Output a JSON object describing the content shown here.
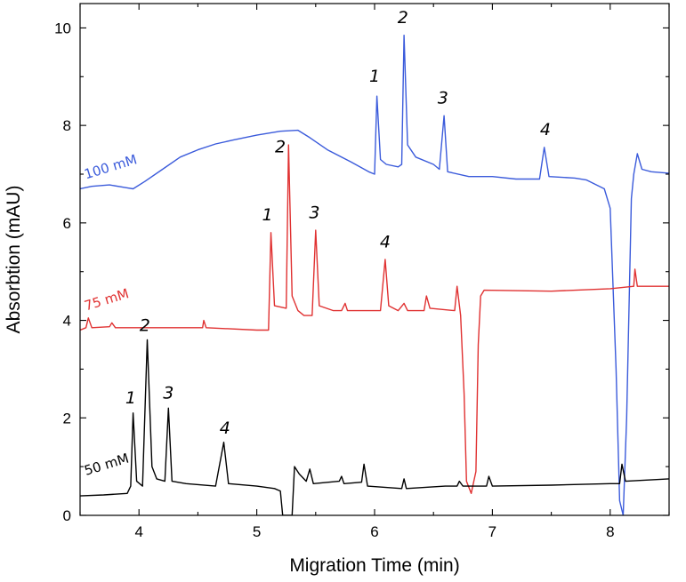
{
  "chart_data": {
    "type": "line",
    "xlabel": "Migration Time (min)",
    "ylabel": "Absorbtion (mAU)",
    "xlim": [
      3.5,
      8.5
    ],
    "ylim": [
      0,
      10.5
    ],
    "xticks": [
      4,
      5,
      6,
      7,
      8
    ],
    "yticks": [
      0,
      2,
      4,
      6,
      8,
      10
    ],
    "grid": false,
    "series": [
      {
        "name": "100 mM",
        "color": "#3b5bdb",
        "label_at": [
          3.55,
          6.9
        ],
        "points": [
          [
            3.5,
            6.7
          ],
          [
            3.6,
            6.75
          ],
          [
            3.75,
            6.78
          ],
          [
            3.9,
            6.72
          ],
          [
            3.95,
            6.7
          ],
          [
            4.05,
            6.85
          ],
          [
            4.2,
            7.1
          ],
          [
            4.35,
            7.35
          ],
          [
            4.5,
            7.5
          ],
          [
            4.65,
            7.62
          ],
          [
            4.8,
            7.7
          ],
          [
            5.0,
            7.8
          ],
          [
            5.2,
            7.88
          ],
          [
            5.35,
            7.9
          ],
          [
            5.45,
            7.75
          ],
          [
            5.6,
            7.5
          ],
          [
            5.8,
            7.25
          ],
          [
            5.95,
            7.05
          ],
          [
            6.0,
            7.0
          ],
          [
            6.02,
            8.6
          ],
          [
            6.05,
            7.3
          ],
          [
            6.1,
            7.2
          ],
          [
            6.2,
            7.15
          ],
          [
            6.23,
            7.2
          ],
          [
            6.25,
            9.85
          ],
          [
            6.28,
            7.6
          ],
          [
            6.35,
            7.35
          ],
          [
            6.5,
            7.2
          ],
          [
            6.55,
            7.1
          ],
          [
            6.59,
            8.2
          ],
          [
            6.62,
            7.05
          ],
          [
            6.8,
            6.95
          ],
          [
            7.0,
            6.95
          ],
          [
            7.2,
            6.9
          ],
          [
            7.4,
            6.9
          ],
          [
            7.44,
            7.55
          ],
          [
            7.48,
            6.95
          ],
          [
            7.7,
            6.92
          ],
          [
            7.8,
            6.88
          ],
          [
            7.95,
            6.7
          ],
          [
            8.0,
            6.3
          ],
          [
            8.05,
            3.0
          ],
          [
            8.08,
            0.3
          ],
          [
            8.11,
            0.0
          ],
          [
            8.14,
            2.0
          ],
          [
            8.18,
            6.5
          ],
          [
            8.2,
            7.0
          ],
          [
            8.23,
            7.42
          ],
          [
            8.27,
            7.1
          ],
          [
            8.35,
            7.05
          ],
          [
            8.5,
            7.02
          ]
        ]
      },
      {
        "name": "75 mM",
        "color": "#e03131",
        "label_at": [
          3.55,
          4.2
        ],
        "points": [
          [
            3.5,
            3.8
          ],
          [
            3.55,
            3.85
          ],
          [
            3.57,
            4.05
          ],
          [
            3.6,
            3.85
          ],
          [
            3.75,
            3.87
          ],
          [
            3.77,
            3.95
          ],
          [
            3.8,
            3.85
          ],
          [
            4.2,
            3.85
          ],
          [
            4.54,
            3.85
          ],
          [
            4.55,
            4.0
          ],
          [
            4.57,
            3.85
          ],
          [
            5.0,
            3.8
          ],
          [
            5.1,
            3.8
          ],
          [
            5.12,
            5.8
          ],
          [
            5.15,
            4.3
          ],
          [
            5.25,
            4.25
          ],
          [
            5.27,
            7.6
          ],
          [
            5.3,
            4.5
          ],
          [
            5.35,
            4.2
          ],
          [
            5.4,
            4.1
          ],
          [
            5.47,
            4.1
          ],
          [
            5.5,
            5.85
          ],
          [
            5.53,
            4.3
          ],
          [
            5.65,
            4.2
          ],
          [
            5.72,
            4.2
          ],
          [
            5.75,
            4.35
          ],
          [
            5.77,
            4.2
          ],
          [
            6.05,
            4.2
          ],
          [
            6.09,
            5.25
          ],
          [
            6.12,
            4.3
          ],
          [
            6.2,
            4.2
          ],
          [
            6.25,
            4.35
          ],
          [
            6.28,
            4.2
          ],
          [
            6.42,
            4.2
          ],
          [
            6.44,
            4.5
          ],
          [
            6.47,
            4.25
          ],
          [
            6.68,
            4.2
          ],
          [
            6.7,
            4.7
          ],
          [
            6.73,
            4.1
          ],
          [
            6.76,
            2.5
          ],
          [
            6.78,
            0.7
          ],
          [
            6.82,
            0.45
          ],
          [
            6.86,
            0.9
          ],
          [
            6.88,
            3.5
          ],
          [
            6.9,
            4.5
          ],
          [
            6.93,
            4.62
          ],
          [
            7.5,
            4.6
          ],
          [
            8.0,
            4.65
          ],
          [
            8.2,
            4.7
          ],
          [
            8.21,
            5.05
          ],
          [
            8.23,
            4.7
          ],
          [
            8.5,
            4.7
          ]
        ]
      },
      {
        "name": "50 mM",
        "color": "#000000",
        "label_at": [
          3.55,
          0.82
        ],
        "points": [
          [
            3.5,
            0.4
          ],
          [
            3.7,
            0.42
          ],
          [
            3.9,
            0.45
          ],
          [
            3.93,
            0.6
          ],
          [
            3.95,
            2.1
          ],
          [
            3.98,
            0.7
          ],
          [
            4.03,
            0.6
          ],
          [
            4.07,
            3.6
          ],
          [
            4.11,
            1.0
          ],
          [
            4.15,
            0.75
          ],
          [
            4.22,
            0.7
          ],
          [
            4.25,
            2.2
          ],
          [
            4.28,
            0.7
          ],
          [
            4.4,
            0.65
          ],
          [
            4.65,
            0.6
          ],
          [
            4.72,
            1.5
          ],
          [
            4.76,
            0.65
          ],
          [
            5.0,
            0.6
          ],
          [
            5.15,
            0.55
          ],
          [
            5.2,
            0.5
          ],
          [
            5.22,
            0.0
          ],
          [
            5.3,
            0.0
          ],
          [
            5.32,
            1.0
          ],
          [
            5.36,
            0.85
          ],
          [
            5.42,
            0.7
          ],
          [
            5.45,
            0.95
          ],
          [
            5.48,
            0.65
          ],
          [
            5.7,
            0.7
          ],
          [
            5.72,
            0.8
          ],
          [
            5.74,
            0.65
          ],
          [
            5.89,
            0.68
          ],
          [
            5.91,
            1.05
          ],
          [
            5.94,
            0.6
          ],
          [
            6.23,
            0.55
          ],
          [
            6.25,
            0.75
          ],
          [
            6.27,
            0.55
          ],
          [
            6.6,
            0.6
          ],
          [
            6.7,
            0.6
          ],
          [
            6.72,
            0.7
          ],
          [
            6.75,
            0.6
          ],
          [
            6.95,
            0.6
          ],
          [
            6.97,
            0.8
          ],
          [
            7.0,
            0.6
          ],
          [
            7.5,
            0.62
          ],
          [
            8.0,
            0.65
          ],
          [
            8.08,
            0.65
          ],
          [
            8.1,
            1.05
          ],
          [
            8.13,
            0.7
          ],
          [
            8.5,
            0.75
          ]
        ]
      }
    ],
    "annotations": [
      {
        "text": "1",
        "x": 6.0,
        "y": 8.9
      },
      {
        "text": "2",
        "x": 6.24,
        "y": 10.1
      },
      {
        "text": "3",
        "x": 6.58,
        "y": 8.45
      },
      {
        "text": "4",
        "x": 7.45,
        "y": 7.8
      },
      {
        "text": "1",
        "x": 5.09,
        "y": 6.05
      },
      {
        "text": "2",
        "x": 5.2,
        "y": 7.45
      },
      {
        "text": "3",
        "x": 5.49,
        "y": 6.1
      },
      {
        "text": "4",
        "x": 6.09,
        "y": 5.5
      },
      {
        "text": "1",
        "x": 3.93,
        "y": 2.3
      },
      {
        "text": "2",
        "x": 4.05,
        "y": 3.78
      },
      {
        "text": "3",
        "x": 4.25,
        "y": 2.4
      },
      {
        "text": "4",
        "x": 4.73,
        "y": 1.68
      }
    ]
  }
}
